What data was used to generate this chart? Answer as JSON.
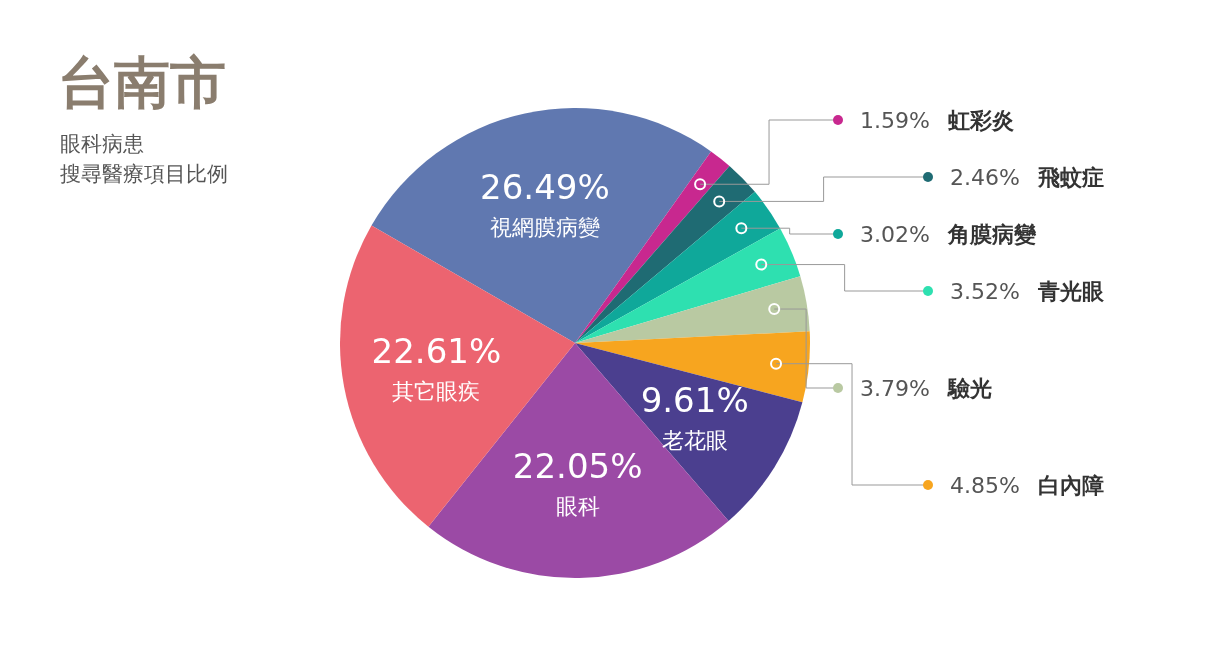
{
  "chart_data": {
    "type": "pie",
    "title": "台南市",
    "subtitle": "眼科病患",
    "annotations": [
      "搜尋醫療項目比例"
    ],
    "categories": [
      "視網膜病變",
      "虹彩炎",
      "飛蚊症",
      "角膜病變",
      "青光眼",
      "驗光",
      "白內障",
      "老花眼",
      "眼科",
      "其它眼疾"
    ],
    "values": [
      26.49,
      1.59,
      2.46,
      3.02,
      3.52,
      3.79,
      4.85,
      9.61,
      22.05,
      22.61
    ],
    "value_labels": [
      "26.49%",
      "1.59%",
      "2.46%",
      "3.02%",
      "3.52%",
      "3.79%",
      "4.85%",
      "9.61%",
      "22.05%",
      "22.61%"
    ],
    "colors": [
      "#6078b0",
      "#c8288f",
      "#1f6b73",
      "#0fa89a",
      "#2ee0b0",
      "#b9c9a2",
      "#f7a51f",
      "#4b3f8f",
      "#9b4aa5",
      "#ec6470"
    ]
  }
}
